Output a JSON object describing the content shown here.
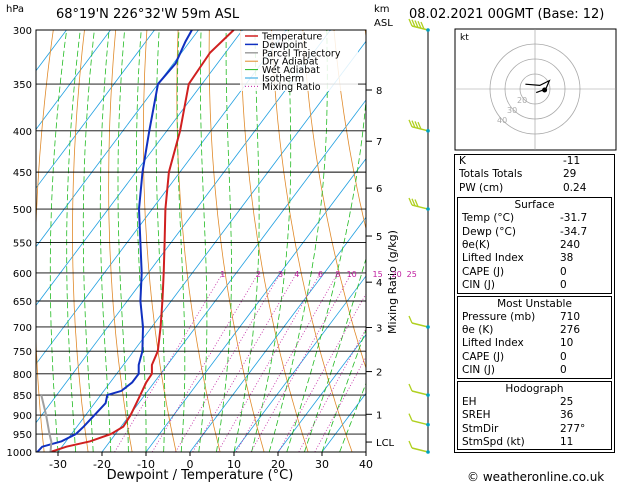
{
  "header": {
    "location": "68°19'N  226°32'W  59m  ASL",
    "date": "08.02.2021  00GMT  (Base: 12)",
    "hpa_label": "hPa",
    "km_label": "km",
    "asl_label": "ASL"
  },
  "colors": {
    "temperature": "#d02020",
    "dewpoint": "#1030c0",
    "parcel": "#a0a0a0",
    "dry_adiabat": "#e08a2a",
    "wet_adiabat": "#22bb22",
    "isotherm": "#20a0e0",
    "mixing_ratio": "#c020a0",
    "wind": "#b0d020"
  },
  "chart_data": {
    "type": "skew-t",
    "xlabel": "Dewpoint / Temperature (°C)",
    "y2label": "Mixing Ratio (g/kg)",
    "xlim": [
      -35,
      40
    ],
    "ylim": [
      1000,
      300
    ],
    "x_ticks": [
      -30,
      -20,
      -10,
      0,
      10,
      20,
      30,
      40
    ],
    "pressure_levels": [
      300,
      350,
      400,
      450,
      500,
      550,
      600,
      650,
      700,
      750,
      800,
      850,
      900,
      950,
      1000
    ],
    "km_ticks": [
      {
        "label": "8",
        "p": 356
      },
      {
        "label": "7",
        "p": 412
      },
      {
        "label": "6",
        "p": 471
      },
      {
        "label": "5",
        "p": 540
      },
      {
        "label": "4",
        "p": 616
      },
      {
        "label": "3",
        "p": 701
      },
      {
        "label": "2",
        "p": 795
      },
      {
        "label": "1",
        "p": 898
      },
      {
        "label": "LCL",
        "p": 972
      }
    ],
    "mixing_ratio_labels": [
      "1",
      "2",
      "3",
      "4",
      "6",
      "8",
      "10",
      "15",
      "20",
      "25"
    ],
    "mixing_ratio_values": [
      1,
      2,
      3,
      4,
      6,
      8,
      10,
      15,
      20,
      25
    ],
    "legend": [
      "Temperature",
      "Dewpoint",
      "Parcel Trajectory",
      "Dry Adiabat",
      "Wet Adiabat",
      "Isotherm",
      "Mixing Ratio"
    ],
    "series": [
      {
        "name": "Temperature",
        "points": [
          [
            1000,
            -31.7
          ],
          [
            985,
            -29
          ],
          [
            970,
            -24.5
          ],
          [
            950,
            -21
          ],
          [
            930,
            -19.5
          ],
          [
            900,
            -19.8
          ],
          [
            870,
            -20.5
          ],
          [
            850,
            -21
          ],
          [
            820,
            -21.8
          ],
          [
            800,
            -22
          ],
          [
            780,
            -23.5
          ],
          [
            750,
            -24.5
          ],
          [
            700,
            -28
          ],
          [
            650,
            -32
          ],
          [
            600,
            -36.5
          ],
          [
            550,
            -41.5
          ],
          [
            500,
            -47
          ],
          [
            450,
            -52.5
          ],
          [
            400,
            -57
          ],
          [
            350,
            -63
          ],
          [
            320,
            -63.5
          ],
          [
            300,
            -62
          ]
        ]
      },
      {
        "name": "Dewpoint",
        "points": [
          [
            1000,
            -34.7
          ],
          [
            985,
            -34.5
          ],
          [
            970,
            -31
          ],
          [
            950,
            -29
          ],
          [
            930,
            -28.5
          ],
          [
            900,
            -28
          ],
          [
            870,
            -27.5
          ],
          [
            850,
            -28.5
          ],
          [
            840,
            -26
          ],
          [
            820,
            -25
          ],
          [
            800,
            -25
          ],
          [
            780,
            -26.5
          ],
          [
            750,
            -28
          ],
          [
            700,
            -32
          ],
          [
            650,
            -37
          ],
          [
            600,
            -41.5
          ],
          [
            550,
            -47
          ],
          [
            500,
            -53
          ],
          [
            450,
            -58.5
          ],
          [
            400,
            -64
          ],
          [
            350,
            -70
          ],
          [
            330,
            -69.5
          ],
          [
            310,
            -71
          ],
          [
            300,
            -71.5
          ]
        ]
      },
      {
        "name": "Parcel Trajectory",
        "points": [
          [
            1000,
            -31.7
          ],
          [
            972,
            -33.2
          ],
          [
            950,
            -35
          ],
          [
            900,
            -39
          ],
          [
            850,
            -43.5
          ]
        ]
      }
    ],
    "wind_barbs": [
      {
        "p": 300,
        "speed": 50
      },
      {
        "p": 400,
        "speed": 40
      },
      {
        "p": 500,
        "speed": 30
      },
      {
        "p": 700,
        "speed": 10
      },
      {
        "p": 850,
        "speed": 10
      },
      {
        "p": 925,
        "speed": 10
      },
      {
        "p": 1000,
        "speed": 10
      }
    ],
    "hodograph": {
      "label": "kt",
      "ring_labels": [
        "20",
        "30",
        "40"
      ],
      "trace": [
        [
          -8,
          4
        ],
        [
          4,
          3
        ],
        [
          12,
          7
        ],
        [
          9,
          0
        ],
        [
          1,
          -3
        ]
      ]
    }
  },
  "table_indices": {
    "rows": [
      {
        "label": "K",
        "value": "-11"
      },
      {
        "label": "Totals Totals",
        "value": "29"
      },
      {
        "label": "PW (cm)",
        "value": "0.24"
      }
    ]
  },
  "table_surface": {
    "title": "Surface",
    "rows": [
      {
        "label": "Temp (°C)",
        "value": "-31.7"
      },
      {
        "label": "Dewp (°C)",
        "value": "-34.7"
      },
      {
        "label": "θe(K)",
        "value": "240"
      },
      {
        "label": "Lifted Index",
        "value": "38"
      },
      {
        "label": "CAPE (J)",
        "value": "0"
      },
      {
        "label": "CIN (J)",
        "value": "0"
      }
    ]
  },
  "table_unstable": {
    "title": "Most Unstable",
    "rows": [
      {
        "label": "Pressure (mb)",
        "value": "710"
      },
      {
        "label": "θe (K)",
        "value": "276"
      },
      {
        "label": "Lifted Index",
        "value": "10"
      },
      {
        "label": "CAPE (J)",
        "value": "0"
      },
      {
        "label": "CIN (J)",
        "value": "0"
      }
    ]
  },
  "table_hodograph": {
    "title": "Hodograph",
    "rows": [
      {
        "label": "EH",
        "value": "25"
      },
      {
        "label": "SREH",
        "value": "36"
      },
      {
        "label": "StmDir",
        "value": "277°"
      },
      {
        "label": "StmSpd (kt)",
        "value": "11"
      }
    ]
  },
  "footer": "© weatheronline.co.uk"
}
